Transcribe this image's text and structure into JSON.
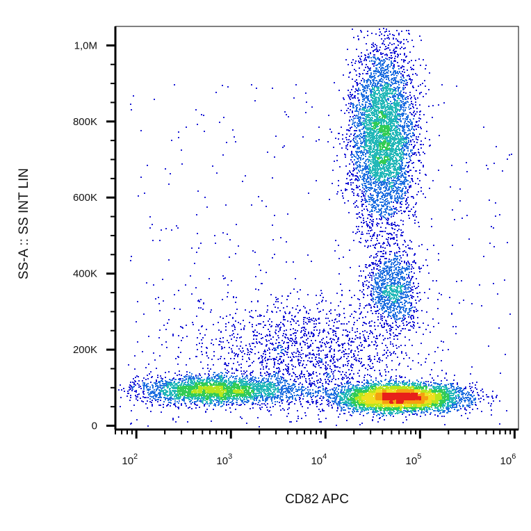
{
  "chart_data": {
    "type": "scatter",
    "subtype": "flow-cytometry density dot plot",
    "xlabel": "CD82 APC",
    "ylabel": "SS-A :: SS INT LIN",
    "x_scale": "log",
    "y_scale": "linear",
    "xlim": [
      60,
      1100000
    ],
    "ylim": [
      -10000,
      1050000
    ],
    "x_ticks": [
      {
        "value": 100,
        "base": "10",
        "exp": "2"
      },
      {
        "value": 1000,
        "base": "10",
        "exp": "3"
      },
      {
        "value": 10000,
        "base": "10",
        "exp": "4"
      },
      {
        "value": 100000,
        "base": "10",
        "exp": "5"
      },
      {
        "value": 1000000,
        "base": "10",
        "exp": "6"
      }
    ],
    "y_ticks": [
      {
        "value": 0,
        "label": "0"
      },
      {
        "value": 200000,
        "label": "200K"
      },
      {
        "value": 400000,
        "label": "400K"
      },
      {
        "value": 600000,
        "label": "600K"
      },
      {
        "value": 800000,
        "label": "800K"
      },
      {
        "value": 1000000,
        "label": "1,0M"
      }
    ],
    "grid": false,
    "legend": "none",
    "density_colors": [
      "#1a1ad6",
      "#1f6fe0",
      "#23b8b8",
      "#33cc55",
      "#b6e61e",
      "#f0e020",
      "#f5a010",
      "#e8201a"
    ],
    "populations": [
      {
        "label": "",
        "x_center": 40000,
        "y_center": 760000,
        "x_spread_decades": 0.17,
        "y_spread": 120000,
        "weight": 0.3
      },
      {
        "label": "",
        "x_center": 50000,
        "y_center": 360000,
        "x_spread_decades": 0.14,
        "y_spread": 55000,
        "weight": 0.07
      },
      {
        "label": "",
        "x_center": 60000,
        "y_center": 75000,
        "x_spread_decades": 0.33,
        "y_spread": 18000,
        "weight": 0.34
      },
      {
        "label": "",
        "x_center": 700,
        "y_center": 95000,
        "x_spread_decades": 0.42,
        "y_spread": 18000,
        "weight": 0.18
      },
      {
        "label": "",
        "x_center": 6000,
        "y_center": 190000,
        "x_spread_decades": 0.6,
        "y_spread": 80000,
        "weight": 0.11
      }
    ]
  }
}
